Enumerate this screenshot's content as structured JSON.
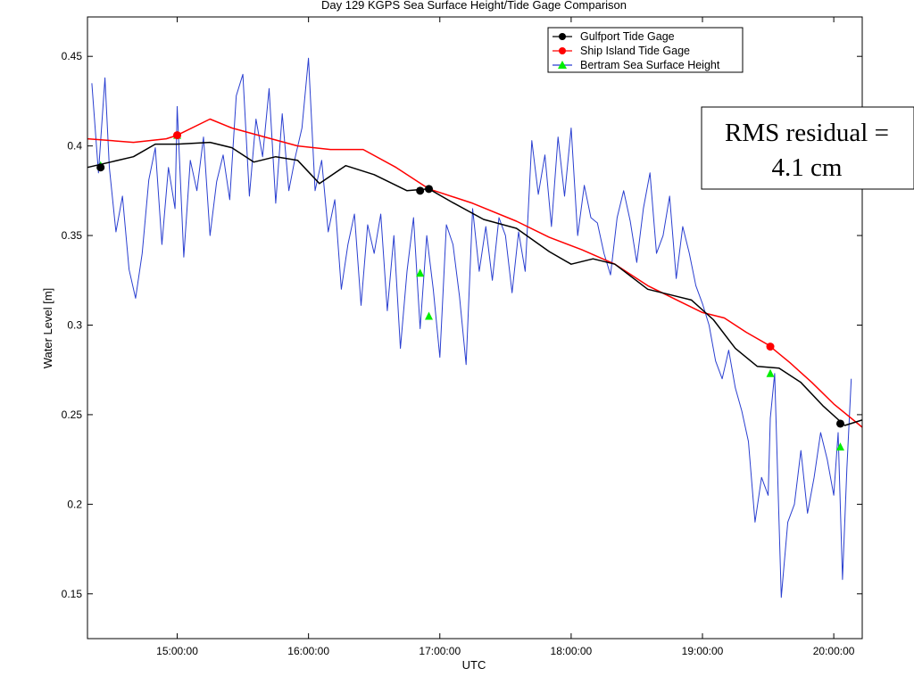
{
  "chart_data": {
    "type": "line",
    "title": "Day 129 KGPS Sea Surface Height/Tide Gage Comparison",
    "xlabel": "UTC",
    "ylabel": "Water Level [m]",
    "xlim": [
      "14:19:00",
      "20:13:00"
    ],
    "ylim": [
      0.125,
      0.472
    ],
    "x_ticks": [
      "15:00:00",
      "16:00:00",
      "17:00:00",
      "18:00:00",
      "19:00:00",
      "20:00:00"
    ],
    "y_ticks": [
      0.15,
      0.2,
      0.25,
      0.3,
      0.35,
      0.4,
      0.45
    ],
    "y_tick_labels": [
      "0.15",
      "0.2",
      "0.25",
      "0.3",
      "0.35",
      "0.4",
      "0.45"
    ],
    "legend_location": "top-right",
    "series": [
      {
        "name": "Gulfport Tide Gage",
        "color": "#000000",
        "marker": "circle",
        "x": [
          "14:19",
          "14:40",
          "14:50",
          "15:00",
          "15:15",
          "15:25",
          "15:35",
          "15:45",
          "15:55",
          "16:05",
          "16:17",
          "16:30",
          "16:45",
          "16:55",
          "17:05",
          "17:20",
          "17:35",
          "17:50",
          "18:00",
          "18:10",
          "18:20",
          "18:35",
          "18:45",
          "18:55",
          "19:05",
          "19:15",
          "19:25",
          "19:35",
          "19:45",
          "19:55",
          "20:05",
          "20:13"
        ],
        "values": [
          0.388,
          0.394,
          0.401,
          0.401,
          0.402,
          0.399,
          0.391,
          0.394,
          0.392,
          0.379,
          0.389,
          0.384,
          0.375,
          0.376,
          0.369,
          0.359,
          0.354,
          0.341,
          0.334,
          0.337,
          0.334,
          0.32,
          0.317,
          0.314,
          0.303,
          0.287,
          0.277,
          0.276,
          0.268,
          0.255,
          0.244,
          0.247
        ],
        "markers": [
          {
            "x": "14:25",
            "value": 0.388
          },
          {
            "x": "16:51",
            "value": 0.375
          },
          {
            "x": "16:55",
            "value": 0.376
          },
          {
            "x": "20:03",
            "value": 0.245
          }
        ]
      },
      {
        "name": "Ship Island Tide Gage",
        "color": "#ff0000",
        "marker": "circle",
        "x": [
          "14:19",
          "14:40",
          "14:55",
          "15:00",
          "15:15",
          "15:25",
          "15:40",
          "15:55",
          "16:10",
          "16:25",
          "16:40",
          "16:55",
          "17:15",
          "17:35",
          "17:50",
          "18:05",
          "18:20",
          "18:35",
          "18:50",
          "19:00",
          "19:10",
          "19:20",
          "19:30",
          "19:40",
          "19:50",
          "20:00",
          "20:13"
        ],
        "values": [
          0.404,
          0.402,
          0.404,
          0.406,
          0.415,
          0.41,
          0.405,
          0.4,
          0.398,
          0.398,
          0.388,
          0.376,
          0.368,
          0.358,
          0.349,
          0.342,
          0.334,
          0.322,
          0.313,
          0.307,
          0.304,
          0.296,
          0.289,
          0.279,
          0.268,
          0.256,
          0.243
        ],
        "markers": [
          {
            "x": "15:00",
            "value": 0.406
          },
          {
            "x": "19:31",
            "value": 0.288
          }
        ]
      },
      {
        "name": "Bertram Sea Surface Height",
        "color": "#2a3fd0",
        "marker_color": "#00ee00",
        "marker": "triangle",
        "x": [
          "14:21",
          "14:24",
          "14:27",
          "14:29",
          "14:32",
          "14:35",
          "14:38",
          "14:41",
          "14:44",
          "14:47",
          "14:50",
          "14:53",
          "14:56",
          "14:59",
          "15:00",
          "15:03",
          "15:06",
          "15:09",
          "15:12",
          "15:15",
          "15:18",
          "15:21",
          "15:24",
          "15:27",
          "15:30",
          "15:33",
          "15:36",
          "15:39",
          "15:42",
          "15:45",
          "15:48",
          "15:51",
          "15:54",
          "15:57",
          "16:00",
          "16:03",
          "16:06",
          "16:09",
          "16:12",
          "16:15",
          "16:18",
          "16:21",
          "16:24",
          "16:27",
          "16:30",
          "16:33",
          "16:36",
          "16:39",
          "16:42",
          "16:45",
          "16:48",
          "16:51",
          "16:54",
          "16:57",
          "17:00",
          "17:03",
          "17:06",
          "17:09",
          "17:12",
          "17:15",
          "17:18",
          "17:21",
          "17:24",
          "17:27",
          "17:30",
          "17:33",
          "17:36",
          "17:39",
          "17:42",
          "17:45",
          "17:48",
          "17:51",
          "17:54",
          "17:57",
          "18:00",
          "18:03",
          "18:06",
          "18:09",
          "18:12",
          "18:15",
          "18:18",
          "18:21",
          "18:24",
          "18:27",
          "18:30",
          "18:33",
          "18:36",
          "18:39",
          "18:42",
          "18:45",
          "18:48",
          "18:51",
          "18:54",
          "18:57",
          "19:00",
          "19:03",
          "19:06",
          "19:09",
          "19:12",
          "19:15",
          "19:18",
          "19:21",
          "19:24",
          "19:27",
          "19:30",
          "19:31",
          "19:33",
          "19:36",
          "19:39",
          "19:42",
          "19:45",
          "19:48",
          "19:51",
          "19:54",
          "19:57",
          "20:00",
          "20:02",
          "20:04",
          "20:06",
          "20:08"
        ],
        "values": [
          0.435,
          0.385,
          0.438,
          0.388,
          0.352,
          0.372,
          0.331,
          0.315,
          0.34,
          0.381,
          0.399,
          0.345,
          0.388,
          0.365,
          0.422,
          0.338,
          0.392,
          0.375,
          0.405,
          0.35,
          0.38,
          0.395,
          0.37,
          0.428,
          0.44,
          0.372,
          0.415,
          0.394,
          0.432,
          0.368,
          0.418,
          0.375,
          0.394,
          0.41,
          0.449,
          0.375,
          0.392,
          0.352,
          0.37,
          0.32,
          0.345,
          0.362,
          0.311,
          0.356,
          0.34,
          0.362,
          0.308,
          0.35,
          0.287,
          0.33,
          0.36,
          0.298,
          0.35,
          0.32,
          0.282,
          0.356,
          0.345,
          0.316,
          0.278,
          0.365,
          0.33,
          0.355,
          0.325,
          0.36,
          0.35,
          0.318,
          0.352,
          0.33,
          0.403,
          0.373,
          0.395,
          0.355,
          0.405,
          0.372,
          0.41,
          0.35,
          0.378,
          0.36,
          0.357,
          0.34,
          0.328,
          0.36,
          0.375,
          0.358,
          0.335,
          0.365,
          0.385,
          0.34,
          0.35,
          0.372,
          0.326,
          0.355,
          0.34,
          0.322,
          0.312,
          0.3,
          0.28,
          0.27,
          0.286,
          0.265,
          0.252,
          0.235,
          0.19,
          0.215,
          0.205,
          0.248,
          0.273,
          0.148,
          0.19,
          0.2,
          0.23,
          0.195,
          0.215,
          0.24,
          0.225,
          0.205,
          0.24,
          0.158,
          0.22,
          0.27
        ],
        "markers": [
          {
            "x": "14:25",
            "value": 0.389
          },
          {
            "x": "15:00",
            "value": 0.406
          },
          {
            "x": "16:51",
            "value": 0.329
          },
          {
            "x": "16:55",
            "value": 0.305
          },
          {
            "x": "19:31",
            "value": 0.273
          },
          {
            "x": "20:03",
            "value": 0.232
          }
        ]
      }
    ],
    "annotations": [
      "RMS residual =",
      "4.1 cm"
    ]
  },
  "colors": {
    "background": "#ffffff",
    "axes": "#000000"
  }
}
